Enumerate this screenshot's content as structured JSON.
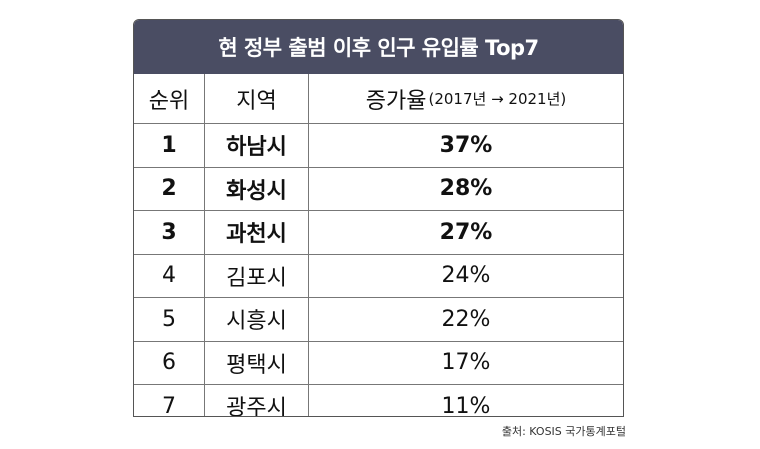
{
  "table": {
    "title": "현 정부 출범 이후 인구 유입률 Top7",
    "headers": {
      "rank": "순위",
      "region": "지역",
      "rate": "증가율",
      "rate_sub": "(2017년 → 2021년)"
    },
    "rows": [
      {
        "rank": "1",
        "region": "하남시",
        "rate": "37%"
      },
      {
        "rank": "2",
        "region": "화성시",
        "rate": "28%"
      },
      {
        "rank": "3",
        "region": "과천시",
        "rate": "27%"
      },
      {
        "rank": "4",
        "region": "김포시",
        "rate": "24%"
      },
      {
        "rank": "5",
        "region": "시흥시",
        "rate": "22%"
      },
      {
        "rank": "6",
        "region": "평택시",
        "rate": "17%"
      },
      {
        "rank": "7",
        "region": "광주시",
        "rate": "11%"
      }
    ]
  },
  "source": "출처: KOSIS 국가통계포털",
  "colors": {
    "title_bg": "#4a4d63",
    "title_text": "#ffffff"
  }
}
